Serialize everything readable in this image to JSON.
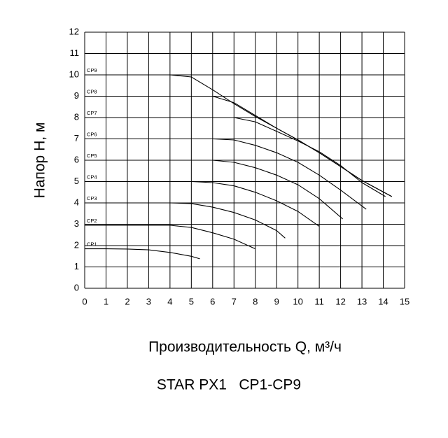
{
  "chart_data": {
    "type": "line",
    "title": "STAR PX1   CP1-CP9",
    "x_label": "Производительность Q, м³/ч",
    "y_label": "Напор H, м",
    "xlim": [
      0,
      15
    ],
    "ylim": [
      0,
      12
    ],
    "xticks": [
      0,
      1,
      2,
      3,
      4,
      5,
      6,
      7,
      8,
      9,
      10,
      11,
      12,
      13,
      14,
      15
    ],
    "yticks": [
      0,
      1,
      2,
      3,
      4,
      5,
      6,
      7,
      8,
      9,
      10,
      11,
      12
    ],
    "grid": true,
    "series": [
      {
        "name": "CP1",
        "color": "#000000",
        "x": [
          0,
          1,
          2,
          3,
          4,
          5,
          5.4
        ],
        "values": [
          1.85,
          1.85,
          1.84,
          1.8,
          1.68,
          1.5,
          1.38
        ]
      },
      {
        "name": "CP2",
        "color": "#000000",
        "x": [
          0,
          4,
          5,
          6,
          7,
          8
        ],
        "values": [
          2.95,
          2.95,
          2.85,
          2.6,
          2.3,
          1.85
        ]
      },
      {
        "name": "CP3",
        "color": "#000000",
        "x": [
          0,
          4,
          5,
          6,
          7,
          8,
          9,
          9.4
        ],
        "values": [
          4.0,
          4.0,
          3.97,
          3.8,
          3.55,
          3.2,
          2.7,
          2.35
        ]
      },
      {
        "name": "CP4",
        "color": "#000000",
        "x": [
          0,
          5,
          6,
          7,
          8,
          9,
          10,
          11
        ],
        "values": [
          5.0,
          5.0,
          4.95,
          4.8,
          4.5,
          4.1,
          3.6,
          2.9
        ]
      },
      {
        "name": "CP5",
        "color": "#000000",
        "x": [
          0,
          6,
          7,
          8,
          9,
          10,
          11,
          12.1
        ],
        "values": [
          6.0,
          6.0,
          5.9,
          5.65,
          5.3,
          4.85,
          4.2,
          3.25
        ]
      },
      {
        "name": "CP6",
        "color": "#000000",
        "x": [
          0,
          6,
          7,
          8,
          9,
          10,
          11,
          12,
          13.2
        ],
        "values": [
          7.0,
          7.0,
          6.95,
          6.7,
          6.35,
          5.9,
          5.3,
          4.6,
          3.7
        ]
      },
      {
        "name": "CP7",
        "color": "#000000",
        "x": [
          0,
          7,
          8,
          9,
          10,
          11,
          12,
          13,
          14.1
        ],
        "values": [
          8.0,
          8.0,
          7.8,
          7.35,
          6.9,
          6.4,
          5.75,
          4.95,
          4.3
        ]
      },
      {
        "name": "CP8",
        "color": "#000000",
        "x": [
          0,
          6,
          7,
          8,
          9,
          10,
          11,
          12,
          13,
          14.4
        ],
        "values": [
          9.0,
          9.0,
          8.7,
          8.1,
          7.5,
          6.95,
          6.35,
          5.7,
          5.05,
          4.3
        ]
      },
      {
        "name": "CP9",
        "color": "#000000",
        "x": [
          0,
          4,
          5,
          6,
          7,
          8,
          9,
          10,
          11,
          12,
          13,
          14.4
        ],
        "values": [
          10.0,
          10.0,
          9.9,
          9.3,
          8.65,
          8.05,
          7.5,
          6.95,
          6.35,
          5.7,
          5.05,
          4.3
        ]
      }
    ]
  }
}
